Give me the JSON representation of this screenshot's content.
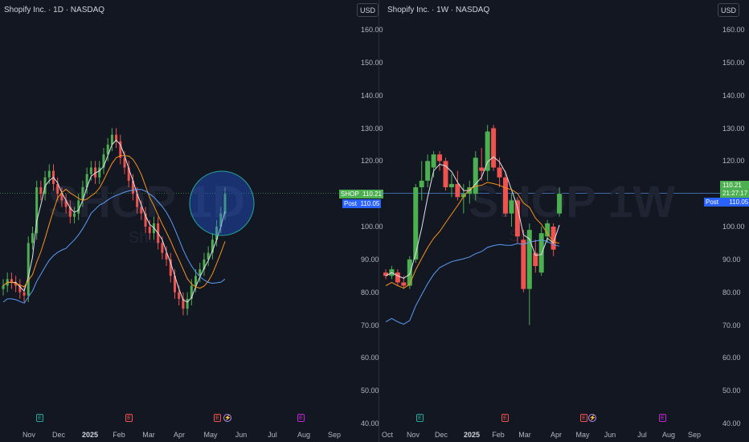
{
  "colors": {
    "up": "#4caf50",
    "down": "#ef5350",
    "ma_fast": "#e0e3eb",
    "ma_mid": "#f7931a",
    "ma_slow": "#5b9cf6",
    "post": "#2962ff",
    "highlight": "#2962ff"
  },
  "left": {
    "title": "Shopify Inc. · 1D · NASDAQ",
    "currency": "USD",
    "watermark": "SHOP 1D",
    "watermark_sub": "Sh...",
    "y_ticks": [
      "160.00",
      "150.00",
      "140.00",
      "130.00",
      "120.00",
      "110.00",
      "100.00",
      "90.00",
      "80.00",
      "70.00",
      "60.00",
      "50.00",
      "40.00"
    ],
    "x_ticks": [
      {
        "label": "Nov",
        "bold": false
      },
      {
        "label": "Dec",
        "bold": false
      },
      {
        "label": "2025",
        "bold": true
      },
      {
        "label": "Feb",
        "bold": false
      },
      {
        "label": "Mar",
        "bold": false
      },
      {
        "label": "Apr",
        "bold": false
      },
      {
        "label": "May",
        "bold": false
      },
      {
        "label": "Jun",
        "bold": false
      },
      {
        "label": "Jul",
        "bold": false
      },
      {
        "label": "Aug",
        "bold": false
      },
      {
        "label": "Sep",
        "bold": false
      }
    ],
    "events": [
      {
        "type": "E",
        "color": "green"
      },
      {
        "type": "E",
        "color": "red"
      },
      {
        "type": "E",
        "color": "red"
      },
      {
        "type": "E",
        "color": "violet"
      }
    ],
    "price_tag": {
      "symbol": "SHOP",
      "value": "110.21"
    },
    "post_tag": {
      "label": "Post",
      "value": "110.05"
    }
  },
  "right": {
    "title": "Shopify Inc. · 1W · NASDAQ",
    "currency": "USD",
    "watermark": "SHOP 1W",
    "watermark_sub": "Sh...",
    "y_ticks": [
      "160.00",
      "150.00",
      "140.00",
      "130.00",
      "120.00",
      "110.00",
      "100.00",
      "90.00",
      "80.00",
      "70.00",
      "60.00",
      "50.00",
      "40.00"
    ],
    "x_ticks": [
      {
        "label": "Oct",
        "bold": false
      },
      {
        "label": "Nov",
        "bold": false
      },
      {
        "label": "Dec",
        "bold": false
      },
      {
        "label": "2025",
        "bold": true
      },
      {
        "label": "Feb",
        "bold": false
      },
      {
        "label": "Mar",
        "bold": false
      },
      {
        "label": "Apr",
        "bold": false
      },
      {
        "label": "May",
        "bold": false
      },
      {
        "label": "Jun",
        "bold": false
      },
      {
        "label": "Jul",
        "bold": false
      },
      {
        "label": "Aug",
        "bold": false
      },
      {
        "label": "Sep",
        "bold": false
      }
    ],
    "events": [
      {
        "type": "E",
        "color": "green"
      },
      {
        "type": "E",
        "color": "red"
      },
      {
        "type": "E",
        "color": "red"
      },
      {
        "type": "E",
        "color": "violet"
      }
    ],
    "price_tag": {
      "value": "110.21",
      "countdown": "21:27:17"
    },
    "post_tag": {
      "label": "Post",
      "value": "110.05"
    }
  },
  "chart_data": [
    {
      "type": "candlestick",
      "title": "Shopify Inc. · 1D · NASDAQ",
      "interval": "1D",
      "y_range": [
        40,
        160
      ],
      "last_price": 110.21,
      "post_market": 110.05,
      "moving_averages": [
        "fast (white)",
        "medium (orange)",
        "slow (blue)"
      ],
      "approx_closes": [
        82,
        84,
        83,
        82,
        80,
        79,
        95,
        98,
        112,
        110,
        115,
        117,
        113,
        110,
        108,
        106,
        103,
        104,
        108,
        112,
        116,
        118,
        115,
        118,
        122,
        125,
        128,
        126,
        121,
        118,
        114,
        110,
        106,
        104,
        100,
        98,
        101,
        95,
        92,
        90,
        85,
        80,
        78,
        75,
        78,
        82,
        85,
        87,
        90,
        92,
        96,
        100,
        104,
        110
      ]
    },
    {
      "type": "candlestick",
      "title": "Shopify Inc. · 1W · NASDAQ",
      "interval": "1W",
      "y_range": [
        40,
        160
      ],
      "last_price": 110.21,
      "post_market": 110.05,
      "countdown": "21:27:17",
      "candles": [
        {
          "o": 86,
          "h": 87,
          "l": 84,
          "c": 85
        },
        {
          "o": 85,
          "h": 88,
          "l": 84,
          "c": 87
        },
        {
          "o": 86,
          "h": 87,
          "l": 82,
          "c": 83
        },
        {
          "o": 83,
          "h": 85,
          "l": 81,
          "c": 82
        },
        {
          "o": 82,
          "h": 91,
          "l": 81,
          "c": 90
        },
        {
          "o": 90,
          "h": 113,
          "l": 89,
          "c": 112
        },
        {
          "o": 112,
          "h": 120,
          "l": 108,
          "c": 114
        },
        {
          "o": 114,
          "h": 122,
          "l": 112,
          "c": 120
        },
        {
          "o": 118,
          "h": 123,
          "l": 115,
          "c": 122
        },
        {
          "o": 122,
          "h": 123,
          "l": 117,
          "c": 120
        },
        {
          "o": 120,
          "h": 121,
          "l": 111,
          "c": 112
        },
        {
          "o": 112,
          "h": 116,
          "l": 109,
          "c": 113
        },
        {
          "o": 113,
          "h": 117,
          "l": 108,
          "c": 109
        },
        {
          "o": 109,
          "h": 113,
          "l": 104,
          "c": 110
        },
        {
          "o": 110,
          "h": 114,
          "l": 107,
          "c": 112
        },
        {
          "o": 110,
          "h": 123,
          "l": 108,
          "c": 121
        },
        {
          "o": 118,
          "h": 124,
          "l": 114,
          "c": 117
        },
        {
          "o": 117,
          "h": 131,
          "l": 114,
          "c": 129
        },
        {
          "o": 130,
          "h": 131,
          "l": 117,
          "c": 118
        },
        {
          "o": 118,
          "h": 121,
          "l": 112,
          "c": 115
        },
        {
          "o": 115,
          "h": 117,
          "l": 103,
          "c": 104
        },
        {
          "o": 104,
          "h": 110,
          "l": 100,
          "c": 108
        },
        {
          "o": 108,
          "h": 109,
          "l": 95,
          "c": 97
        },
        {
          "o": 96,
          "h": 99,
          "l": 80,
          "c": 81
        },
        {
          "o": 81,
          "h": 101,
          "l": 70,
          "c": 99
        },
        {
          "o": 92,
          "h": 96,
          "l": 86,
          "c": 88
        },
        {
          "o": 86,
          "h": 100,
          "l": 85,
          "c": 98
        },
        {
          "o": 97,
          "h": 102,
          "l": 95,
          "c": 101
        },
        {
          "o": 100,
          "h": 101,
          "l": 91,
          "c": 93
        },
        {
          "o": 104,
          "h": 112,
          "l": 103,
          "c": 110
        }
      ]
    }
  ]
}
